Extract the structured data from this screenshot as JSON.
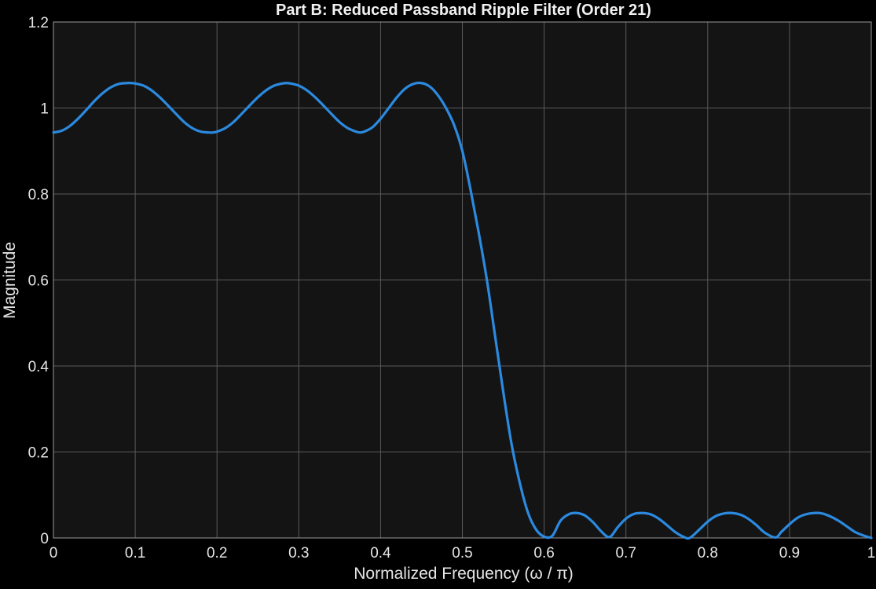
{
  "chart_data": {
    "type": "line",
    "title": "Part B: Reduced Passband Ripple Filter (Order 21)",
    "xlabel": "Normalized  Frequency  (ω  /  π)",
    "ylabel": "Magnitude",
    "xlim": [
      0,
      1
    ],
    "ylim": [
      0,
      1.2
    ],
    "xticks": [
      "0",
      "0.1",
      "0.2",
      "0.3",
      "0.4",
      "0.5",
      "0.6",
      "0.7",
      "0.8",
      "0.9",
      "1"
    ],
    "yticks": [
      "0",
      "0.2",
      "0.4",
      "0.6",
      "0.8",
      "1",
      "1.2"
    ],
    "grid": true,
    "colors": {
      "figure_background": "#000000",
      "axes_background": "#141414",
      "grid": "#5a5a5a",
      "axes_border": "#9a9a9a",
      "line": "#2b8ae0"
    },
    "series": [
      {
        "x": [
          0,
          0.01,
          0.02,
          0.03,
          0.04,
          0.05,
          0.06,
          0.07,
          0.08,
          0.09,
          0.095,
          0.1,
          0.11,
          0.12,
          0.13,
          0.14,
          0.15,
          0.16,
          0.17,
          0.18,
          0.19,
          0.195,
          0.2,
          0.21,
          0.22,
          0.23,
          0.24,
          0.25,
          0.26,
          0.27,
          0.28,
          0.285,
          0.29,
          0.3,
          0.31,
          0.32,
          0.33,
          0.34,
          0.35,
          0.36,
          0.37,
          0.375,
          0.38,
          0.39,
          0.4,
          0.41,
          0.42,
          0.43,
          0.44,
          0.45,
          0.46,
          0.47,
          0.48,
          0.49,
          0.5,
          0.51,
          0.52,
          0.53,
          0.54,
          0.55,
          0.56,
          0.57,
          0.58,
          0.59,
          0.6,
          0.61,
          0.62,
          0.63,
          0.64,
          0.65,
          0.66,
          0.67,
          0.68,
          0.69,
          0.7,
          0.71,
          0.72,
          0.73,
          0.74,
          0.75,
          0.76,
          0.77,
          0.778,
          0.79,
          0.8,
          0.81,
          0.82,
          0.83,
          0.84,
          0.85,
          0.86,
          0.87,
          0.883,
          0.89,
          0.9,
          0.91,
          0.92,
          0.93,
          0.94,
          0.95,
          0.96,
          0.97,
          0.98,
          0.99,
          1.0
        ],
        "y": [
          0.943,
          0.947,
          0.958,
          0.975,
          0.995,
          1.016,
          1.034,
          1.048,
          1.056,
          1.058,
          1.058,
          1.057,
          1.052,
          1.041,
          1.025,
          1.006,
          0.986,
          0.967,
          0.953,
          0.945,
          0.943,
          0.943,
          0.945,
          0.953,
          0.967,
          0.986,
          1.006,
          1.025,
          1.041,
          1.052,
          1.057,
          1.058,
          1.057,
          1.052,
          1.041,
          1.025,
          1.006,
          0.986,
          0.967,
          0.953,
          0.945,
          0.943,
          0.945,
          0.955,
          0.975,
          1.0,
          1.025,
          1.045,
          1.056,
          1.058,
          1.05,
          1.03,
          1.0,
          0.96,
          0.9,
          0.81,
          0.71,
          0.6,
          0.47,
          0.34,
          0.22,
          0.13,
          0.06,
          0.02,
          0.003,
          0.005,
          0.04,
          0.055,
          0.058,
          0.052,
          0.036,
          0.015,
          0.002,
          0.025,
          0.045,
          0.056,
          0.058,
          0.055,
          0.045,
          0.03,
          0.014,
          0.003,
          0.0,
          0.02,
          0.038,
          0.051,
          0.057,
          0.058,
          0.054,
          0.044,
          0.029,
          0.012,
          0.001,
          0.014,
          0.032,
          0.047,
          0.055,
          0.058,
          0.057,
          0.05,
          0.04,
          0.027,
          0.014,
          0.006,
          0.0
        ]
      }
    ]
  }
}
